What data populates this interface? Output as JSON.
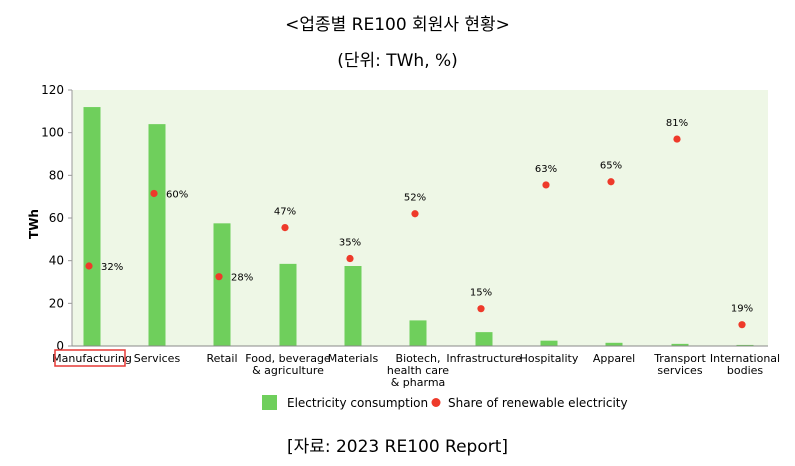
{
  "header": {
    "title": "<업종별 RE100 회원사 현황>",
    "subtitle": "(단위: TWh, %)"
  },
  "footer": {
    "source": "[자료: 2023 RE100 Report]"
  },
  "colors": {
    "bar": "#6fcf5c",
    "dot": "#ee3a2a",
    "plot_bg": "#eef7e6",
    "highlight": "#e53935"
  },
  "chart_data": {
    "type": "bar",
    "ylabel": "TWh",
    "ylim": [
      0,
      120
    ],
    "yticks": [
      0,
      20,
      40,
      60,
      80,
      100,
      120
    ],
    "grid": false,
    "legend_position": "bottom",
    "highlighted_category": "Manufacturing",
    "categories": [
      [
        "Manufacturing"
      ],
      [
        "Services"
      ],
      [
        "Retail"
      ],
      [
        "Food, beverage",
        "& agriculture"
      ],
      [
        "Materials"
      ],
      [
        "Biotech,",
        "health care",
        "& pharma"
      ],
      [
        "Infrastructure"
      ],
      [
        "Hospitality"
      ],
      [
        "Apparel"
      ],
      [
        "Transport",
        "services"
      ],
      [
        "International",
        "bodies"
      ]
    ],
    "series": [
      {
        "name": "Electricity consumption",
        "kind": "bar",
        "values": [
          112,
          104,
          57.5,
          38.5,
          37.5,
          12,
          6.5,
          2.5,
          1.5,
          1,
          0.5
        ]
      },
      {
        "name": "Share of renewable electricity",
        "kind": "dot",
        "values": [
          32,
          60,
          28,
          47,
          35,
          52,
          15,
          63,
          65,
          81,
          19
        ],
        "labels": [
          "32%",
          "60%",
          "28%",
          "47%",
          "35%",
          "52%",
          "15%",
          "63%",
          "65%",
          "81%",
          "19%"
        ],
        "positions_on_twh_axis": [
          37.5,
          71.5,
          32.5,
          55.5,
          41,
          62,
          17.5,
          75.5,
          77,
          97,
          10
        ]
      }
    ]
  }
}
